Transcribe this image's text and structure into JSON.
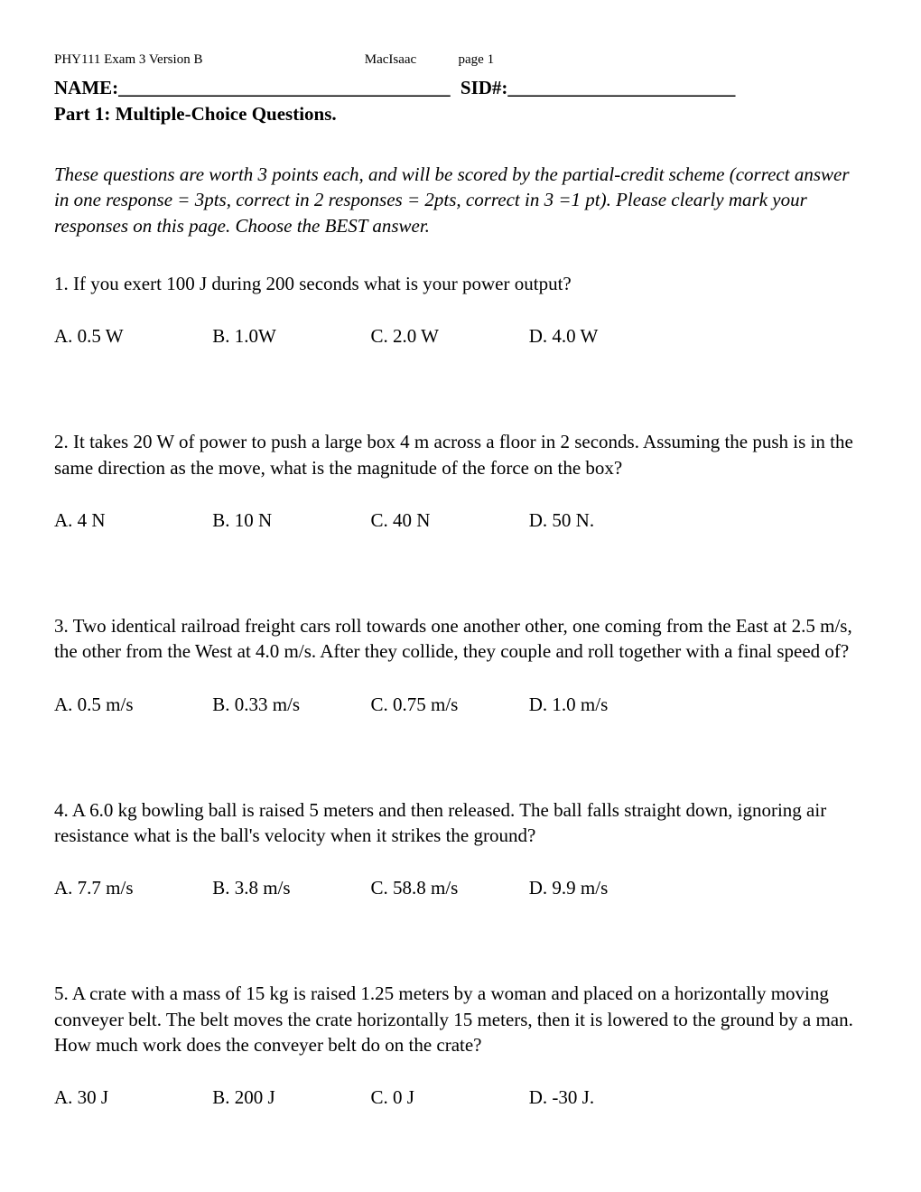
{
  "header": {
    "left": "PHY111  Exam 3    Version B",
    "mid": "MacIsaac",
    "right": "page 1"
  },
  "name_line": {
    "name_label": "NAME:",
    "name_blank": " ___________________________________",
    "sid_label": "SID#:",
    "sid_blank": " ________________________"
  },
  "part_title": "Part 1:  Multiple-Choice Questions.",
  "instructions": "These questions are worth 3 points each, and will be scored by the partial-credit scheme (correct answer in one response = 3pts, correct in 2 responses = 2pts, correct in 3 =1 pt).  Please clearly mark your responses on this page.  Choose the BEST answer.",
  "questions": [
    {
      "text": "1.  If you exert 100 J during 200 seconds what is your power output?",
      "choices": [
        "A.  0.5 W",
        "B.  1.0W",
        "C.  2.0 W",
        "D. 4.0 W"
      ]
    },
    {
      "text": "2.  It takes 20 W of power to push a large box 4 m across a floor in 2 seconds.  Assuming the push is in the same direction as the move, what is the magnitude of the force on the box?",
      "choices": [
        "A.  4 N",
        "B.  10 N",
        "C.  40 N",
        "D.  50 N."
      ]
    },
    {
      "text": "3.  Two identical railroad freight cars roll towards one another other, one coming from the East at 2.5 m/s, the other from the West at 4.0 m/s. After they collide, they couple and roll together with a final speed of?",
      "choices": [
        "A.  0.5 m/s",
        "B. 0.33 m/s",
        "C.  0.75 m/s",
        "D.  1.0 m/s"
      ]
    },
    {
      "text": "4.  A 6.0 kg bowling ball is raised 5 meters and then released.  The ball falls straight down, ignoring air resistance what is the ball's velocity when it strikes the ground?",
      "choices": [
        "A.  7.7 m/s",
        "B.  3.8 m/s",
        "C.  58.8 m/s",
        "D.  9.9 m/s"
      ]
    },
    {
      "text": "5.  A crate with a mass of 15 kg is raised 1.25 meters by a woman and placed on a horizontally moving conveyer belt.  The belt moves the crate horizontally 15 meters, then it is lowered to the ground by a man.  How much work does the conveyer belt do on the crate?",
      "choices": [
        "A.  30 J",
        "B.  200 J",
        "C. 0 J",
        "D.  -30 J."
      ]
    }
  ]
}
